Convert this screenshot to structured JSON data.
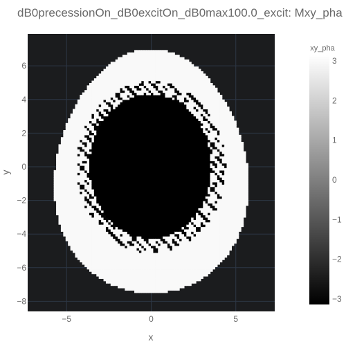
{
  "chart_data": {
    "type": "heatmap",
    "title": "dB0precessionOn_dB0excitOn_dB0max100.0_excit: Mxy_pha",
    "xlabel": "x",
    "ylabel": "y",
    "xlim": [
      -7.3,
      7.3
    ],
    "ylim": [
      -8.6,
      7.9
    ],
    "x_ticks": [
      -5,
      0,
      5
    ],
    "x_tick_labels": [
      "−5",
      "0",
      "5"
    ],
    "y_ticks": [
      6,
      4,
      2,
      0,
      -2,
      -4,
      -6,
      -8
    ],
    "y_tick_labels": [
      "6",
      "4",
      "2",
      "0",
      "−2",
      "−4",
      "−6",
      "−8"
    ],
    "grid": true,
    "plot_background": "#1b1c1e",
    "gridline_color": "#2d3746",
    "colorbar": {
      "title": "xy_pha",
      "range": [
        -3.14159,
        3.14159
      ],
      "ticks": [
        3,
        2,
        1,
        0,
        -1,
        -2,
        -3
      ],
      "tick_labels": [
        "3",
        "2",
        "1",
        "0",
        "−1",
        "−2",
        "−3"
      ],
      "colorscale": [
        "#000000",
        "#ffffff"
      ]
    },
    "regions": [
      {
        "name": "outer ring",
        "value": 3.0,
        "shape": "egg",
        "cx": 0,
        "cy": -0.3,
        "rx_top": 5.0,
        "rx_bottom": 6.4,
        "top": 7.0,
        "bottom": -7.5
      },
      {
        "name": "inner core",
        "value": -3.14,
        "shape": "ellipse",
        "cx": -0.05,
        "cy": 0.05,
        "rx": 3.6,
        "ry": 4.3
      },
      {
        "name": "dark band",
        "value": -3.0,
        "shape": "ring",
        "cx": 0,
        "cy": 0,
        "rx": 4.4,
        "ry": 5.1
      }
    ]
  }
}
